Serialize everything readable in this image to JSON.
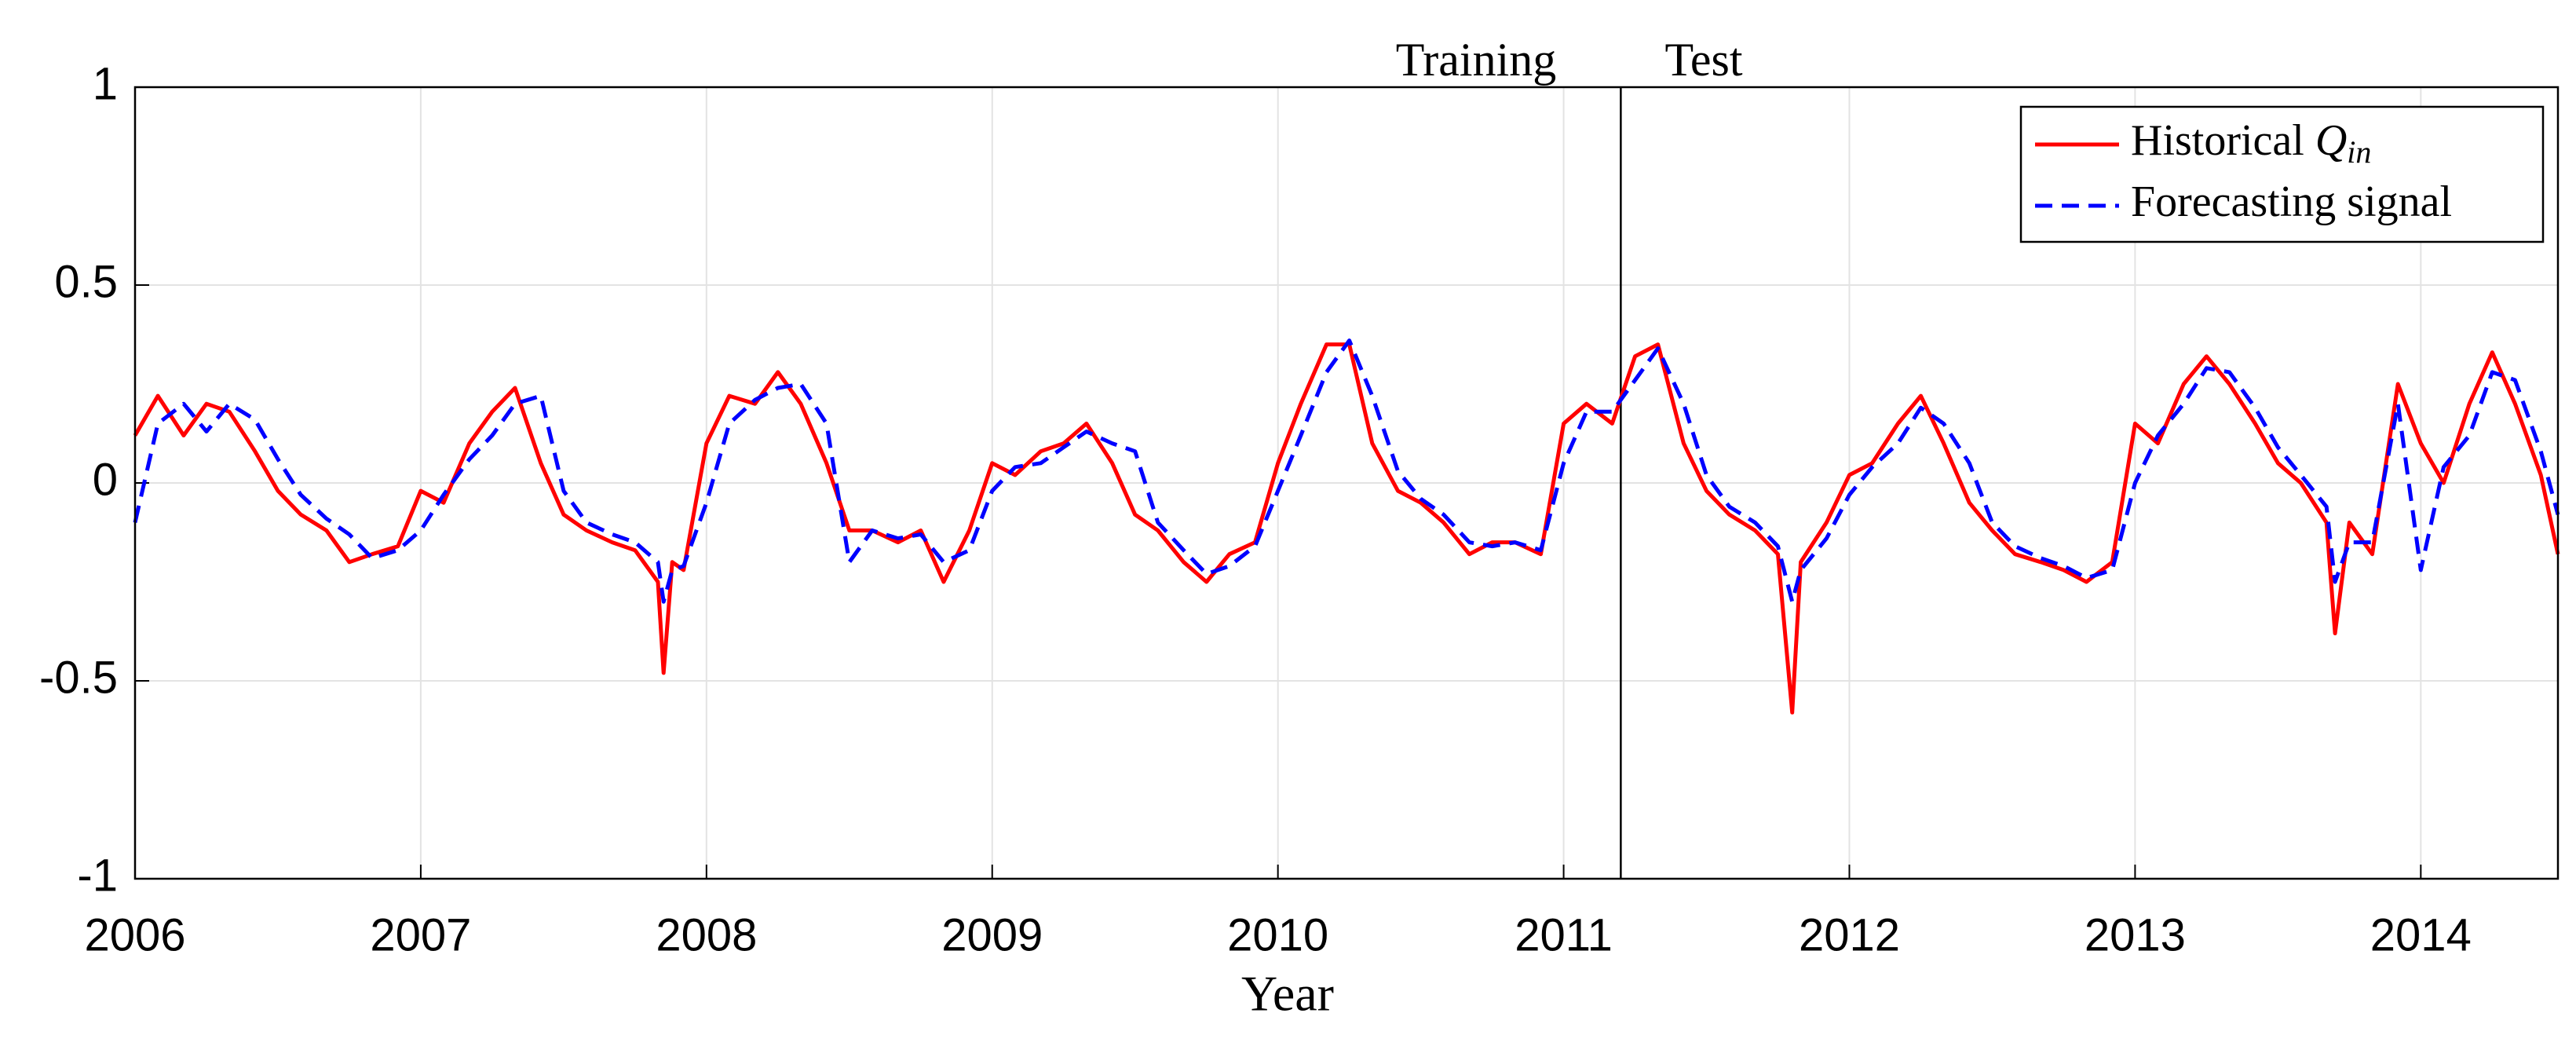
{
  "chart_data": {
    "type": "line",
    "xlabel": "Year",
    "annotations": [
      {
        "text": "Training"
      },
      {
        "text": "Test"
      }
    ],
    "divider_x": 2011.2,
    "x": [
      2006.0,
      2006.08,
      2006.17,
      2006.25,
      2006.33,
      2006.42,
      2006.5,
      2006.58,
      2006.67,
      2006.75,
      2006.83,
      2006.92,
      2007.0,
      2007.08,
      2007.17,
      2007.25,
      2007.33,
      2007.42,
      2007.5,
      2007.58,
      2007.67,
      2007.75,
      2007.83,
      2007.85,
      2007.88,
      2007.92,
      2008.0,
      2008.08,
      2008.17,
      2008.25,
      2008.33,
      2008.42,
      2008.5,
      2008.58,
      2008.67,
      2008.75,
      2008.83,
      2008.92,
      2009.0,
      2009.08,
      2009.17,
      2009.25,
      2009.33,
      2009.42,
      2009.5,
      2009.58,
      2009.67,
      2009.75,
      2009.83,
      2009.92,
      2010.0,
      2010.08,
      2010.17,
      2010.25,
      2010.33,
      2010.42,
      2010.5,
      2010.58,
      2010.67,
      2010.75,
      2010.83,
      2010.92,
      2011.0,
      2011.08,
      2011.17,
      2011.25,
      2011.33,
      2011.42,
      2011.5,
      2011.58,
      2011.67,
      2011.75,
      2011.8,
      2011.83,
      2011.92,
      2012.0,
      2012.08,
      2012.17,
      2012.25,
      2012.33,
      2012.42,
      2012.5,
      2012.58,
      2012.67,
      2012.75,
      2012.83,
      2012.92,
      2013.0,
      2013.08,
      2013.17,
      2013.25,
      2013.33,
      2013.42,
      2013.5,
      2013.58,
      2013.67,
      2013.7,
      2013.75,
      2013.83,
      2013.92,
      2014.0,
      2014.08,
      2014.17,
      2014.25,
      2014.33,
      2014.42,
      2014.48
    ],
    "series": [
      {
        "name": "Historical Q_in",
        "color": "#ff0000",
        "style": "solid",
        "values": [
          0.12,
          0.22,
          0.12,
          0.2,
          0.18,
          0.08,
          -0.02,
          -0.08,
          -0.12,
          -0.2,
          -0.18,
          -0.16,
          -0.02,
          -0.05,
          0.1,
          0.18,
          0.24,
          0.05,
          -0.08,
          -0.12,
          -0.15,
          -0.17,
          -0.25,
          -0.48,
          -0.2,
          -0.22,
          0.1,
          0.22,
          0.2,
          0.28,
          0.2,
          0.05,
          -0.12,
          -0.12,
          -0.15,
          -0.12,
          -0.25,
          -0.12,
          0.05,
          0.02,
          0.08,
          0.1,
          0.15,
          0.05,
          -0.08,
          -0.12,
          -0.2,
          -0.25,
          -0.18,
          -0.15,
          0.05,
          0.2,
          0.35,
          0.35,
          0.1,
          -0.02,
          -0.05,
          -0.1,
          -0.18,
          -0.15,
          -0.15,
          -0.18,
          0.15,
          0.2,
          0.15,
          0.32,
          0.35,
          0.1,
          -0.02,
          -0.08,
          -0.12,
          -0.18,
          -0.58,
          -0.2,
          -0.1,
          0.02,
          0.05,
          0.15,
          0.22,
          0.1,
          -0.05,
          -0.12,
          -0.18,
          -0.2,
          -0.22,
          -0.25,
          -0.2,
          0.15,
          0.1,
          0.25,
          0.32,
          0.25,
          0.15,
          0.05,
          0.0,
          -0.1,
          -0.38,
          -0.1,
          -0.18,
          0.25,
          0.1,
          0.0,
          0.2,
          0.33,
          0.2,
          0.02,
          -0.18
        ]
      },
      {
        "name": "Forecasting signal",
        "color": "#0000ff",
        "style": "dashed",
        "values": [
          -0.1,
          0.15,
          0.2,
          0.13,
          0.2,
          0.16,
          0.06,
          -0.03,
          -0.09,
          -0.13,
          -0.19,
          -0.17,
          -0.12,
          -0.03,
          0.06,
          0.12,
          0.2,
          0.22,
          -0.02,
          -0.1,
          -0.13,
          -0.15,
          -0.2,
          -0.3,
          -0.22,
          -0.21,
          -0.05,
          0.15,
          0.21,
          0.24,
          0.25,
          0.15,
          -0.2,
          -0.12,
          -0.14,
          -0.13,
          -0.2,
          -0.17,
          -0.02,
          0.04,
          0.05,
          0.09,
          0.13,
          0.1,
          0.08,
          -0.1,
          -0.17,
          -0.23,
          -0.21,
          -0.16,
          -0.02,
          0.12,
          0.28,
          0.36,
          0.22,
          0.03,
          -0.04,
          -0.08,
          -0.15,
          -0.16,
          -0.15,
          -0.17,
          0.05,
          0.18,
          0.18,
          0.26,
          0.34,
          0.2,
          0.02,
          -0.06,
          -0.1,
          -0.16,
          -0.3,
          -0.22,
          -0.14,
          -0.03,
          0.04,
          0.1,
          0.19,
          0.15,
          0.05,
          -0.1,
          -0.16,
          -0.19,
          -0.21,
          -0.24,
          -0.22,
          0.0,
          0.12,
          0.2,
          0.29,
          0.28,
          0.19,
          0.09,
          0.02,
          -0.06,
          -0.25,
          -0.15,
          -0.15,
          0.2,
          -0.22,
          0.04,
          0.12,
          0.28,
          0.26,
          0.08,
          -0.08
        ]
      }
    ],
    "xlim": [
      2006,
      2014.48
    ],
    "ylim": [
      -1,
      1
    ],
    "xticks": [
      2006,
      2007,
      2008,
      2009,
      2010,
      2011,
      2012,
      2013,
      2014
    ],
    "yticks": [
      -1,
      -0.5,
      0,
      0.5,
      1
    ],
    "grid": true,
    "legend": "top-right"
  }
}
